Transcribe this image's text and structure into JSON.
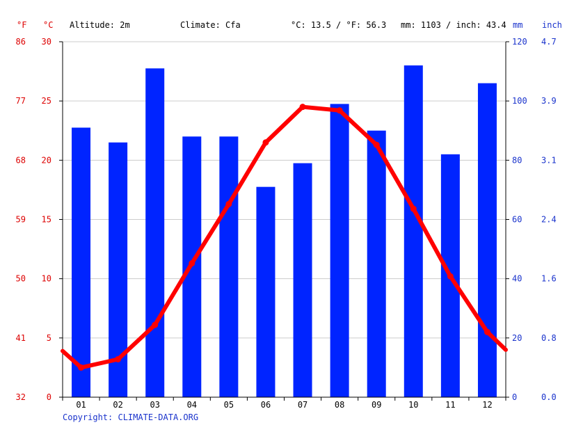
{
  "header": {
    "altitude": "Altitude: 2m",
    "climate": "Climate: Cfa",
    "avg_temp": "°C: 13.5 / °F: 56.3",
    "precip": "mm: 1103 / inch: 43.4"
  },
  "units": {
    "f": "°F",
    "c": "°C",
    "mm": "mm",
    "inch": "inch"
  },
  "copyright": "Copyright: CLIMATE-DATA.ORG",
  "colors": {
    "temp": "#ff0000",
    "precip": "#0024ff",
    "axis_right": "#1a33cc",
    "axis_left": "#dd0000",
    "grid": "#cccccc"
  },
  "chart_data": {
    "type": "bar",
    "categories": [
      "01",
      "02",
      "03",
      "04",
      "05",
      "06",
      "07",
      "08",
      "09",
      "10",
      "11",
      "12"
    ],
    "series": [
      {
        "type": "bar",
        "axis": "mm",
        "values": [
          91,
          86,
          111,
          88,
          88,
          71,
          79,
          99,
          90,
          112,
          82,
          106
        ]
      },
      {
        "type": "line",
        "axis": "celsius",
        "values": [
          2.5,
          3.2,
          6.1,
          11.3,
          16.3,
          21.5,
          24.5,
          24.2,
          21.3,
          15.9,
          10.2,
          5.5
        ]
      }
    ],
    "temp_line_ends": [
      3.9,
      4.0
    ],
    "left_axis_c": {
      "ticks": [
        "30",
        "25",
        "20",
        "15",
        "10",
        "5",
        "0"
      ],
      "range": [
        0,
        30
      ]
    },
    "left_axis_f": {
      "ticks": [
        "86",
        "77",
        "68",
        "59",
        "50",
        "41",
        "32"
      ]
    },
    "right_axis_mm": {
      "ticks": [
        "120",
        "100",
        "80",
        "60",
        "40",
        "20",
        "0"
      ],
      "range": [
        0,
        120
      ]
    },
    "right_axis_inch": {
      "ticks": [
        "4.7",
        "3.9",
        "3.1",
        "2.4",
        "1.6",
        "0.8",
        "0.0"
      ]
    },
    "grid": true
  }
}
